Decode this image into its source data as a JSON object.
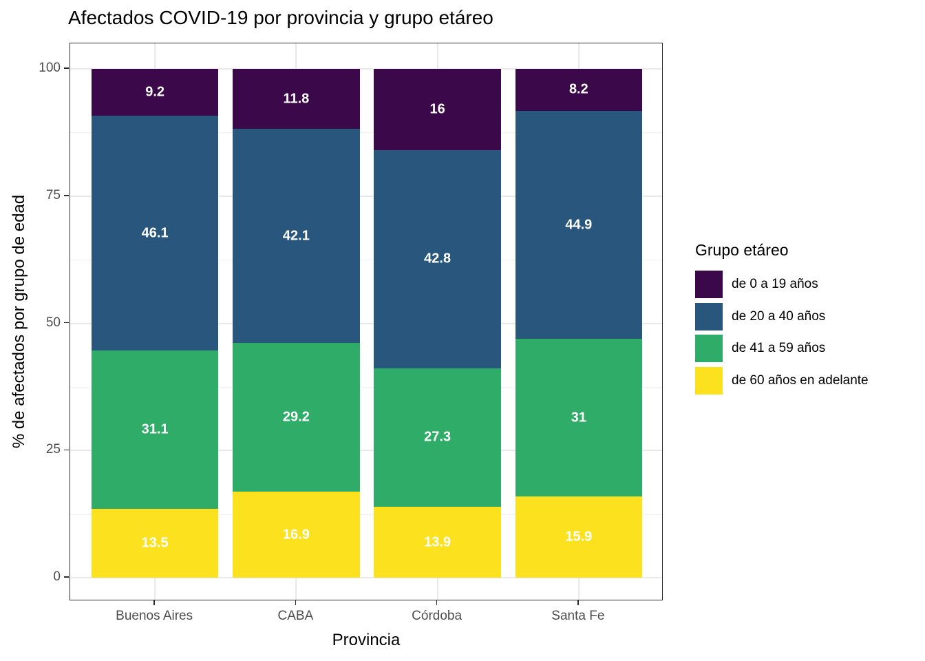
{
  "chart_data": {
    "type": "bar",
    "subtype": "stacked_percent",
    "title": "Afectados COVID-19 por provincia y grupo etáreo",
    "xlabel": "Provincia",
    "ylabel": "% de afectados por grupo de edad",
    "categories": [
      "Buenos Aires",
      "CABA",
      "Córdoba",
      "Santa Fe"
    ],
    "series": [
      {
        "name": "de 0 a 19 años",
        "color": "#3b0849",
        "values": [
          9.2,
          11.8,
          16,
          8.2
        ]
      },
      {
        "name": "de 20 a 40 años",
        "color": "#28567c",
        "values": [
          46.1,
          42.1,
          42.8,
          44.9
        ]
      },
      {
        "name": "de 41 a 59 años",
        "color": "#2fac68",
        "values": [
          31.1,
          29.2,
          27.3,
          31
        ]
      },
      {
        "name": "de 60 años en adelante",
        "color": "#fce21e",
        "values": [
          13.5,
          16.9,
          13.9,
          15.9
        ]
      }
    ],
    "legend": {
      "title": "Grupo etáreo",
      "position": "right"
    },
    "y_ticks": [
      0,
      25,
      50,
      75,
      100
    ],
    "ylim": [
      0,
      100
    ],
    "grid": {
      "major_horizontal": true,
      "minor_horizontal": true,
      "vertical_at_categories": true
    },
    "label_color": "#ffffff",
    "tick_label_color": "#4d4d4d"
  }
}
